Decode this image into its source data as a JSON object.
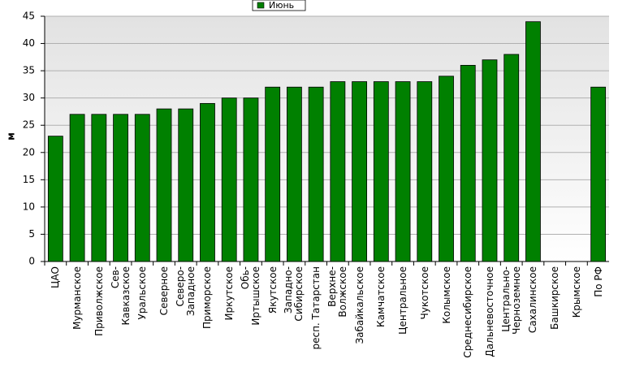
{
  "chart_data": {
    "type": "bar",
    "y_label": "м",
    "categories": [
      "ЦАО",
      "Мурманское",
      "Приволжское",
      "Сев-\nКавказское",
      "Уральское",
      "Северное",
      "Северо-\nЗападное",
      "Приморское",
      "Иркутское",
      "Обь-\nИртышское",
      "Якутское",
      "Западно-\nСибирское",
      "респ. Татарстан",
      "Верхне-\nВолжское",
      "Забайкальское",
      "Камчатское",
      "Центральное",
      "Чукотское",
      "Колымское",
      "Среднесибирское",
      "Дальневосточное",
      "Центрально-\nЧерноземное",
      "Сахалинское",
      "Башкирское",
      "Крымское",
      "По РФ"
    ],
    "series": [
      {
        "name": "Июнь",
        "color": "#008000",
        "values": [
          23,
          27,
          27,
          27,
          27,
          28,
          28,
          29,
          30,
          30,
          32,
          32,
          32,
          33,
          33,
          33,
          33,
          33,
          34,
          36,
          37,
          38,
          44,
          null,
          null,
          32
        ]
      }
    ],
    "ylim": [
      0,
      45
    ],
    "yticks": [
      0,
      5,
      10,
      15,
      20,
      25,
      30,
      35,
      40,
      45
    ],
    "grid": true,
    "legend": "top"
  }
}
